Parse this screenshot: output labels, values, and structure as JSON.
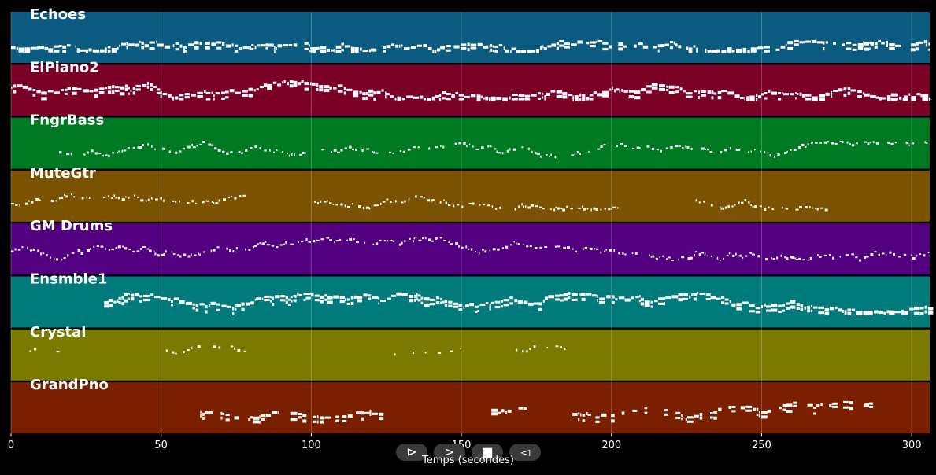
{
  "chart_data": {
    "type": "piano-roll",
    "xlabel": "Temps (secondes)",
    "xlim": [
      0,
      306
    ],
    "xticks": [
      0,
      50,
      100,
      150,
      200,
      250,
      300
    ],
    "grid": true,
    "tracks": [
      {
        "name": "Echoes",
        "color": "#0b5a80",
        "pitch_range": [
          0.55,
          0.75
        ],
        "segments": [
          [
            0,
            306
          ]
        ],
        "density": 0.9,
        "thick": true
      },
      {
        "name": "ElPiano2",
        "color": "#7a0028",
        "pitch_range": [
          0.3,
          0.65
        ],
        "segments": [
          [
            0,
            306
          ]
        ],
        "density": 1.0,
        "thick": true
      },
      {
        "name": "FngrBass",
        "color": "#007a22",
        "pitch_range": [
          0.45,
          0.75
        ],
        "segments": [
          [
            16,
            306
          ]
        ],
        "density": 0.7,
        "thick": false
      },
      {
        "name": "MuteGtr",
        "color": "#7a5200",
        "pitch_range": [
          0.45,
          0.75
        ],
        "segments": [
          [
            0,
            78
          ],
          [
            101,
            203
          ],
          [
            228,
            272
          ]
        ],
        "density": 0.8,
        "thick": false
      },
      {
        "name": "GM Drums",
        "color": "#520080",
        "pitch_range": [
          0.25,
          0.72
        ],
        "segments": [
          [
            0,
            306
          ]
        ],
        "density": 0.9,
        "thick": false
      },
      {
        "name": "Ensmble1",
        "color": "#007a7a",
        "pitch_range": [
          0.3,
          0.7
        ],
        "segments": [
          [
            31,
            306
          ]
        ],
        "density": 1.0,
        "thick": true
      },
      {
        "name": "Crystal",
        "color": "#7a7a00",
        "pitch_range": [
          0.3,
          0.55
        ],
        "segments": [
          [
            2,
            16
          ],
          [
            47,
            78
          ],
          [
            126,
            155
          ],
          [
            163,
            186
          ]
        ],
        "density": 0.35,
        "thick": false
      },
      {
        "name": "GrandPno",
        "color": "#7a1f00",
        "pitch_range": [
          0.35,
          0.75
        ],
        "segments": [
          [
            63,
            124
          ],
          [
            160,
            172
          ],
          [
            187,
            286
          ]
        ],
        "density": 0.7,
        "thick": true
      }
    ]
  },
  "controls": {
    "play": "⊳",
    "forward": ">",
    "stop": "■",
    "back": "◅"
  }
}
